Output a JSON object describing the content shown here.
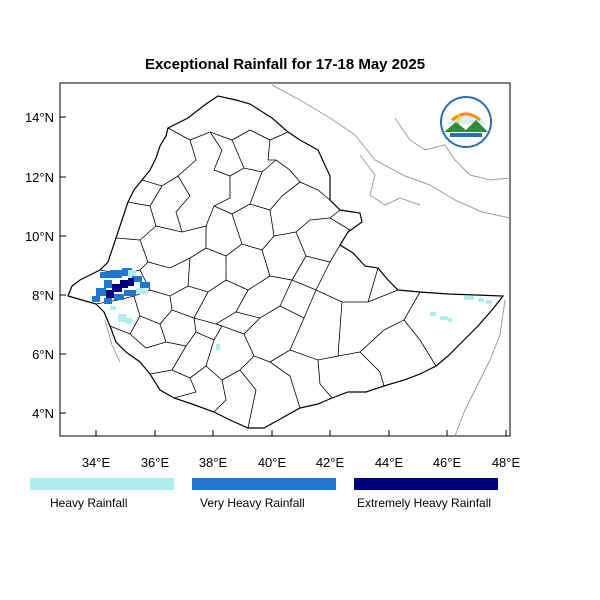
{
  "title": "Exceptional Rainfall for 17-18 May 2025",
  "axes": {
    "lon_ticks": [
      "34°E",
      "36°E",
      "38°E",
      "40°E",
      "42°E",
      "44°E",
      "46°E",
      "48°E"
    ],
    "lat_ticks": [
      "14°N",
      "12°N",
      "10°N",
      "8°N",
      "6°N",
      "4°N"
    ]
  },
  "legend": [
    {
      "label": "Heavy Rainfall",
      "color": "#aeeeee"
    },
    {
      "label": "Very Heavy Rainfall",
      "color": "#1f77d0"
    },
    {
      "label": "Extremely Heavy Rainfall",
      "color": "#00007f"
    }
  ],
  "colors": {
    "heavy": "#aeeeee",
    "very_heavy": "#1f77d0",
    "extremely_heavy": "#00007f",
    "border": "#000000",
    "neighbor_border": "#a0a0a0"
  },
  "logo": {
    "name": "ethiopian-meteorology-institute-logo"
  }
}
